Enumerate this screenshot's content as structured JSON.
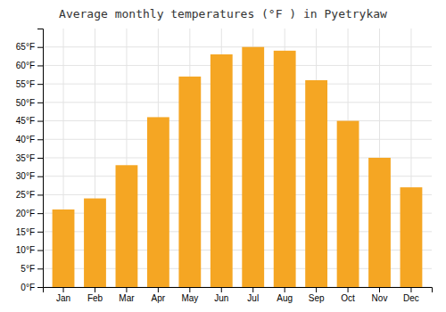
{
  "chart_data": {
    "type": "bar",
    "title": "Average monthly temperatures (°F ) in Pyetrykaw",
    "categories": [
      "Jan",
      "Feb",
      "Mar",
      "Apr",
      "May",
      "Jun",
      "Jul",
      "Aug",
      "Sep",
      "Oct",
      "Nov",
      "Dec"
    ],
    "values": [
      21,
      24,
      33,
      46,
      57,
      63,
      65,
      64,
      56,
      45,
      35,
      27
    ],
    "color": "#F5A623",
    "ylim": [
      0,
      70
    ],
    "yticks": [
      {
        "value": 0,
        "label": "0°F"
      },
      {
        "value": 5,
        "label": "5°F"
      },
      {
        "value": 10,
        "label": "10°F"
      },
      {
        "value": 15,
        "label": "15°F"
      },
      {
        "value": 20,
        "label": "20°F"
      },
      {
        "value": 25,
        "label": "25°F"
      },
      {
        "value": 30,
        "label": "30°F"
      },
      {
        "value": 35,
        "label": "35°F"
      },
      {
        "value": 40,
        "label": "40°F"
      },
      {
        "value": 45,
        "label": "45°F"
      },
      {
        "value": 50,
        "label": "50°F"
      },
      {
        "value": 55,
        "label": "55°F"
      },
      {
        "value": 60,
        "label": "60°F"
      },
      {
        "value": 65,
        "label": "65°F"
      }
    ],
    "grid": true
  }
}
